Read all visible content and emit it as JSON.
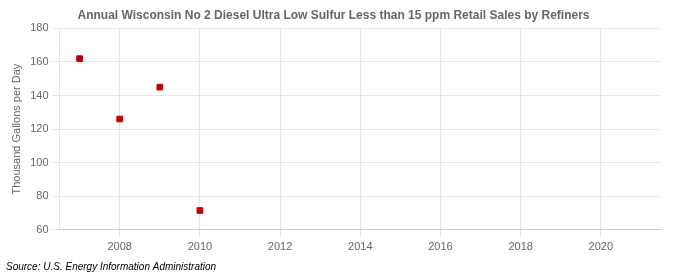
{
  "chart_data": {
    "type": "scatter",
    "title": "Annual Wisconsin No 2 Diesel Ultra Low Sulfur Less than 15 ppm Retail Sales by Refiners",
    "ylabel": "Thousand Gallons per Day",
    "annotations": [
      "Source: U.S. Energy Information Administration"
    ],
    "x": [
      2007,
      2008,
      2009,
      2010
    ],
    "values": [
      162.0,
      126.0,
      145.0,
      71.5
    ],
    "color": "#c00000",
    "marker": "square",
    "xlim": [
      2006.5,
      2021.5
    ],
    "ylim": [
      60,
      180
    ],
    "xticks": [
      2008,
      2010,
      2012,
      2014,
      2016,
      2018,
      2020
    ],
    "yticks": [
      60,
      80,
      100,
      120,
      140,
      160,
      180
    ],
    "grid": true
  }
}
